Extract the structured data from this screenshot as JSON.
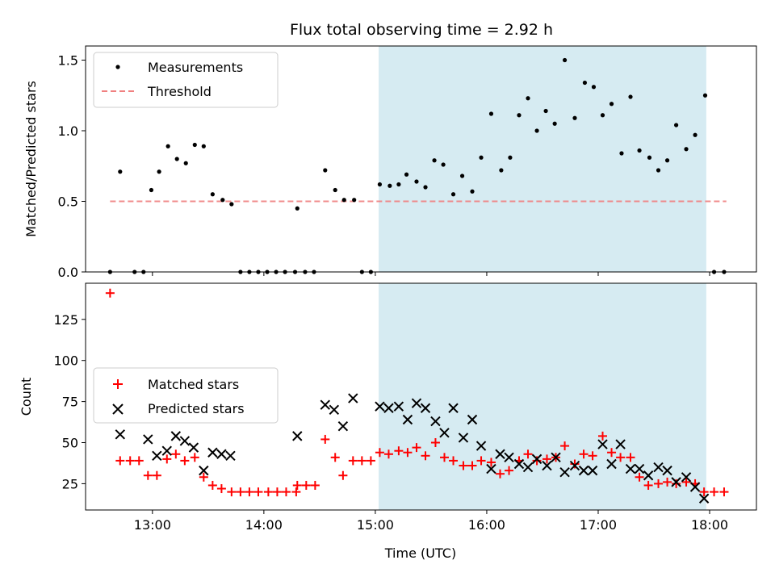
{
  "chart_data": [
    {
      "type": "scatter",
      "title": "Flux total observing time = 2.92 h",
      "xlabel": "",
      "ylabel": "Matched/Predicted stars",
      "xlim": [
        12.4,
        18.42
      ],
      "ylim": [
        0,
        1.6
      ],
      "yticks": [
        0.0,
        0.5,
        1.0,
        1.5
      ],
      "ytick_labels": [
        "0.0",
        "0.5",
        "1.0",
        "1.5"
      ],
      "grid": false,
      "legend_position": "upper-left",
      "shaded_region": {
        "x_start": 15.03,
        "x_end": 17.97,
        "color": "#add8e6"
      },
      "threshold": {
        "name": "Threshold",
        "value": 0.5,
        "x_start": 12.62,
        "x_end": 18.15,
        "color": "#f08080"
      },
      "series": [
        {
          "name": "Measurements",
          "color": "#000000",
          "points": [
            [
              12.62,
              0.0
            ],
            [
              12.71,
              0.71
            ],
            [
              12.84,
              0.0
            ],
            [
              12.92,
              0.0
            ],
            [
              12.99,
              0.58
            ],
            [
              13.06,
              0.71
            ],
            [
              13.14,
              0.89
            ],
            [
              13.22,
              0.8
            ],
            [
              13.3,
              0.77
            ],
            [
              13.38,
              0.9
            ],
            [
              13.46,
              0.89
            ],
            [
              13.54,
              0.55
            ],
            [
              13.63,
              0.51
            ],
            [
              13.71,
              0.48
            ],
            [
              13.79,
              0.0
            ],
            [
              13.87,
              0.0
            ],
            [
              13.95,
              0.0
            ],
            [
              14.03,
              0.0
            ],
            [
              14.11,
              0.0
            ],
            [
              14.19,
              0.0
            ],
            [
              14.28,
              0.0
            ],
            [
              14.3,
              0.45
            ],
            [
              14.37,
              0.0
            ],
            [
              14.45,
              0.0
            ],
            [
              14.55,
              0.72
            ],
            [
              14.64,
              0.58
            ],
            [
              14.72,
              0.51
            ],
            [
              14.81,
              0.51
            ],
            [
              14.88,
              0.0
            ],
            [
              14.96,
              0.0
            ],
            [
              15.04,
              0.62
            ],
            [
              15.13,
              0.61
            ],
            [
              15.21,
              0.62
            ],
            [
              15.28,
              0.69
            ],
            [
              15.37,
              0.64
            ],
            [
              15.45,
              0.6
            ],
            [
              15.53,
              0.79
            ],
            [
              15.61,
              0.76
            ],
            [
              15.7,
              0.55
            ],
            [
              15.78,
              0.68
            ],
            [
              15.87,
              0.57
            ],
            [
              15.95,
              0.81
            ],
            [
              16.04,
              1.12
            ],
            [
              16.13,
              0.72
            ],
            [
              16.21,
              0.81
            ],
            [
              16.29,
              1.11
            ],
            [
              16.37,
              1.23
            ],
            [
              16.45,
              1.0
            ],
            [
              16.53,
              1.14
            ],
            [
              16.61,
              1.05
            ],
            [
              16.7,
              1.5
            ],
            [
              16.79,
              1.09
            ],
            [
              16.88,
              1.34
            ],
            [
              16.96,
              1.31
            ],
            [
              17.04,
              1.11
            ],
            [
              17.12,
              1.19
            ],
            [
              17.21,
              0.84
            ],
            [
              17.29,
              1.24
            ],
            [
              17.37,
              0.86
            ],
            [
              17.46,
              0.81
            ],
            [
              17.54,
              0.72
            ],
            [
              17.62,
              0.79
            ],
            [
              17.7,
              1.04
            ],
            [
              17.79,
              0.87
            ],
            [
              17.87,
              0.97
            ],
            [
              17.96,
              1.25
            ],
            [
              18.04,
              0.0
            ],
            [
              18.13,
              0.0
            ]
          ]
        }
      ]
    },
    {
      "type": "scatter",
      "title": "",
      "xlabel": "Time (UTC)",
      "ylabel": "Count",
      "xlim": [
        12.4,
        18.42
      ],
      "ylim": [
        9,
        147
      ],
      "xticks": [
        13,
        14,
        15,
        16,
        17,
        18
      ],
      "xtick_labels": [
        "13:00",
        "14:00",
        "15:00",
        "16:00",
        "17:00",
        "18:00"
      ],
      "yticks": [
        25,
        50,
        75,
        100,
        125
      ],
      "ytick_labels": [
        "25",
        "50",
        "75",
        "100",
        "125"
      ],
      "grid": false,
      "legend_position": "center-left",
      "shaded_region": {
        "x_start": 15.03,
        "x_end": 17.97,
        "color": "#add8e6"
      },
      "series": [
        {
          "name": "Matched stars",
          "marker": "plus",
          "color": "#ff0000",
          "points": [
            [
              12.62,
              141
            ],
            [
              12.71,
              39
            ],
            [
              12.8,
              39
            ],
            [
              12.88,
              39
            ],
            [
              12.96,
              30
            ],
            [
              13.04,
              30
            ],
            [
              13.13,
              40
            ],
            [
              13.21,
              43
            ],
            [
              13.29,
              39
            ],
            [
              13.38,
              41
            ],
            [
              13.46,
              29
            ],
            [
              13.54,
              24
            ],
            [
              13.62,
              22
            ],
            [
              13.71,
              20
            ],
            [
              13.79,
              20
            ],
            [
              13.87,
              20
            ],
            [
              13.95,
              20
            ],
            [
              14.04,
              20
            ],
            [
              14.12,
              20
            ],
            [
              14.2,
              20
            ],
            [
              14.29,
              20
            ],
            [
              14.3,
              24
            ],
            [
              14.38,
              24
            ],
            [
              14.46,
              24
            ],
            [
              14.55,
              52
            ],
            [
              14.64,
              41
            ],
            [
              14.71,
              30
            ],
            [
              14.8,
              39
            ],
            [
              14.88,
              39
            ],
            [
              14.96,
              39
            ],
            [
              15.04,
              44
            ],
            [
              15.12,
              43
            ],
            [
              15.21,
              45
            ],
            [
              15.29,
              44
            ],
            [
              15.37,
              47
            ],
            [
              15.45,
              42
            ],
            [
              15.54,
              50
            ],
            [
              15.62,
              41
            ],
            [
              15.7,
              39
            ],
            [
              15.79,
              36
            ],
            [
              15.87,
              36
            ],
            [
              15.95,
              39
            ],
            [
              16.04,
              38
            ],
            [
              16.12,
              31
            ],
            [
              16.2,
              33
            ],
            [
              16.29,
              39
            ],
            [
              16.37,
              43
            ],
            [
              16.45,
              39
            ],
            [
              16.54,
              40
            ],
            [
              16.62,
              41
            ],
            [
              16.7,
              48
            ],
            [
              16.79,
              37
            ],
            [
              16.87,
              43
            ],
            [
              16.95,
              42
            ],
            [
              17.04,
              54
            ],
            [
              17.12,
              44
            ],
            [
              17.2,
              41
            ],
            [
              17.29,
              41
            ],
            [
              17.37,
              29
            ],
            [
              17.45,
              24
            ],
            [
              17.54,
              25
            ],
            [
              17.62,
              26
            ],
            [
              17.7,
              25
            ],
            [
              17.79,
              26
            ],
            [
              17.87,
              25
            ],
            [
              17.95,
              20
            ],
            [
              18.04,
              20
            ],
            [
              18.13,
              20
            ]
          ]
        },
        {
          "name": "Predicted stars",
          "marker": "x",
          "color": "#000000",
          "points": [
            [
              12.71,
              55
            ],
            [
              12.96,
              52
            ],
            [
              13.04,
              42
            ],
            [
              13.13,
              45
            ],
            [
              13.21,
              54
            ],
            [
              13.29,
              51
            ],
            [
              13.37,
              47
            ],
            [
              13.46,
              33
            ],
            [
              13.54,
              44
            ],
            [
              13.62,
              43
            ],
            [
              13.7,
              42
            ],
            [
              14.3,
              54
            ],
            [
              14.55,
              73
            ],
            [
              14.63,
              70
            ],
            [
              14.71,
              60
            ],
            [
              14.8,
              77
            ],
            [
              15.04,
              72
            ],
            [
              15.12,
              71
            ],
            [
              15.21,
              72
            ],
            [
              15.29,
              64
            ],
            [
              15.37,
              74
            ],
            [
              15.45,
              71
            ],
            [
              15.54,
              63
            ],
            [
              15.62,
              56
            ],
            [
              15.7,
              71
            ],
            [
              15.79,
              53
            ],
            [
              15.87,
              64
            ],
            [
              15.95,
              48
            ],
            [
              16.04,
              34
            ],
            [
              16.12,
              43
            ],
            [
              16.2,
              41
            ],
            [
              16.29,
              37
            ],
            [
              16.37,
              35
            ],
            [
              16.45,
              40
            ],
            [
              16.54,
              36
            ],
            [
              16.62,
              41
            ],
            [
              16.7,
              32
            ],
            [
              16.79,
              36
            ],
            [
              16.87,
              33
            ],
            [
              16.95,
              33
            ],
            [
              17.04,
              49
            ],
            [
              17.12,
              37
            ],
            [
              17.2,
              49
            ],
            [
              17.29,
              34
            ],
            [
              17.37,
              34
            ],
            [
              17.45,
              30
            ],
            [
              17.54,
              35
            ],
            [
              17.62,
              33
            ],
            [
              17.7,
              26
            ],
            [
              17.79,
              29
            ],
            [
              17.87,
              23
            ],
            [
              17.95,
              16
            ]
          ]
        }
      ]
    }
  ]
}
